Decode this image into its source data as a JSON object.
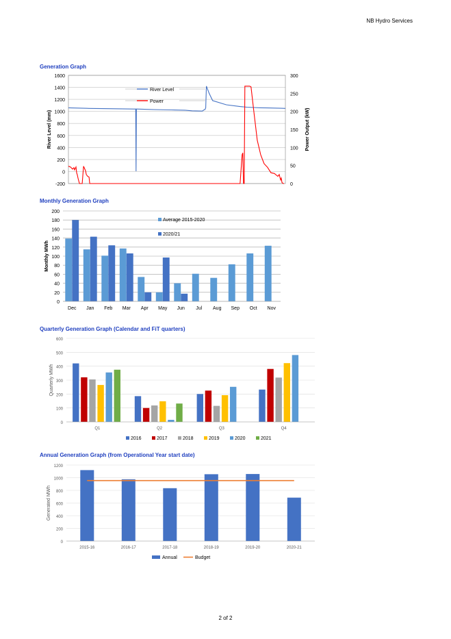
{
  "header": {
    "company": "NB Hydro Services"
  },
  "footer": {
    "page": "2 of 2"
  },
  "charts": {
    "generation": {
      "title": "Generation Graph"
    },
    "monthly": {
      "title": "Monthly Generation Graph"
    },
    "quarterly": {
      "title": "Quarterly Generation Graph (Calendar and FiT quarters)"
    },
    "annual": {
      "title": "Annual Generation Graph (from Operational Year start date)"
    }
  },
  "chart_data": [
    {
      "type": "line",
      "title": "Generation Graph",
      "ylabel": "River Level (mm)",
      "y2label": "Power Output (kW)",
      "ylim": [
        -200,
        1600
      ],
      "yticks": [
        -200,
        0,
        200,
        400,
        600,
        800,
        1000,
        1200,
        1400,
        1600
      ],
      "y2lim": [
        0,
        300
      ],
      "y2ticks": [
        0,
        50,
        100,
        150,
        200,
        250,
        300
      ],
      "grid": true,
      "legend": "top-left",
      "series": [
        {
          "name": "River Level",
          "color": "#4472c4",
          "axis": "left",
          "x": [
            0,
            30,
            60,
            95,
            98,
            98.5,
            99,
            100,
            125,
            150,
            170,
            180,
            195,
            198,
            199,
            200,
            201,
            205,
            210,
            230,
            250,
            260,
            270,
            280,
            290,
            300,
            310,
            316
          ],
          "y": [
            1060,
            1050,
            1045,
            1040,
            1040,
            5,
            1040,
            1040,
            1030,
            1025,
            1020,
            1010,
            1005,
            1030,
            1030,
            1060,
            1420,
            1300,
            1180,
            1110,
            1080,
            1070,
            1065,
            1060,
            1058,
            1055,
            1052,
            1050
          ]
        },
        {
          "name": "Power",
          "color": "#ff0000",
          "axis": "right",
          "x": [
            0,
            3,
            6,
            8,
            9,
            11,
            12,
            13,
            14,
            16,
            18,
            20,
            22,
            25,
            26,
            28,
            30,
            31,
            34,
            35,
            40,
            60,
            100,
            150,
            200,
            250,
            253,
            254,
            255,
            256,
            257,
            258,
            260,
            262,
            264,
            266,
            270,
            275,
            280,
            285,
            290,
            295,
            300,
            305,
            307,
            309,
            310,
            311,
            313,
            314
          ],
          "y": [
            48,
            46,
            40,
            44,
            38,
            46,
            30,
            24,
            15,
            0,
            0,
            0,
            48,
            35,
            25,
            20,
            18,
            0,
            0,
            0,
            0,
            0,
            0,
            0,
            0,
            0,
            80,
            85,
            0,
            0,
            270,
            270,
            270,
            270,
            270,
            268,
            200,
            120,
            80,
            55,
            45,
            30,
            28,
            20,
            25,
            10,
            15,
            3,
            0,
            0
          ]
        }
      ]
    },
    {
      "type": "bar",
      "title": "Monthly Generation Graph",
      "ylabel": "Monthly MWh",
      "ylim": [
        0,
        200
      ],
      "yticks": [
        0,
        20,
        40,
        60,
        80,
        100,
        120,
        140,
        160,
        180,
        200
      ],
      "grid": true,
      "legend": "top-center",
      "categories": [
        "Dec",
        "Jan",
        "Feb",
        "Mar",
        "Apr",
        "May",
        "Jun",
        "Jul",
        "Aug",
        "Sep",
        "Oct",
        "Nov"
      ],
      "series": [
        {
          "name": "Average 2015-2020",
          "color": "#5b9bd5",
          "values": [
            139,
            115,
            101,
            117,
            54,
            20,
            40,
            61,
            52,
            82,
            106,
            123
          ]
        },
        {
          "name": "2020/21",
          "color": "#4472c4",
          "values": [
            180,
            143,
            124,
            106,
            20,
            97,
            17,
            null,
            null,
            null,
            null,
            null
          ]
        }
      ]
    },
    {
      "type": "bar",
      "title": "Quarterly Generation Graph (Calendar and FiT quarters)",
      "ylabel": "Quarterly MWh",
      "ylim": [
        0,
        600
      ],
      "yticks": [
        0,
        100,
        200,
        300,
        400,
        500,
        600
      ],
      "grid": true,
      "legend": "bottom",
      "categories": [
        "Q1",
        "Q2",
        "Q3",
        "Q4"
      ],
      "series": [
        {
          "name": "2016",
          "color": "#4472c4",
          "values": [
            420,
            185,
            200,
            232
          ]
        },
        {
          "name": "2017",
          "color": "#c00000",
          "values": [
            320,
            100,
            225,
            380
          ]
        },
        {
          "name": "2018",
          "color": "#a5a5a5",
          "values": [
            305,
            118,
            115,
            318
          ]
        },
        {
          "name": "2019",
          "color": "#ffc000",
          "values": [
            265,
            148,
            192,
            422
          ]
        },
        {
          "name": "2020",
          "color": "#5b9bd5",
          "values": [
            355,
            15,
            252,
            480
          ]
        },
        {
          "name": "2021",
          "color": "#70ad47",
          "values": [
            375,
            132,
            null,
            null
          ]
        }
      ]
    },
    {
      "type": "bar",
      "title": "Annual Generation Graph (from Operational Year start date)",
      "ylabel": "Generated MWh",
      "ylim": [
        0,
        1200
      ],
      "yticks": [
        0,
        200,
        400,
        600,
        800,
        1000,
        1200
      ],
      "grid": true,
      "legend": "bottom",
      "categories": [
        "2015-16",
        "2016-17",
        "2017-18",
        "2018-19",
        "2019-20",
        "2020-21"
      ],
      "series": [
        {
          "name": "Annual",
          "color": "#4472c4",
          "values": [
            1120,
            975,
            835,
            1055,
            1058,
            685
          ]
        },
        {
          "name": "Budget",
          "color": "#ed7d31",
          "type": "line",
          "values": [
            955,
            955,
            955,
            955,
            955,
            955
          ]
        }
      ]
    }
  ]
}
